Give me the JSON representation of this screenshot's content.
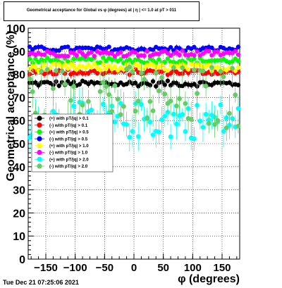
{
  "title": "Geometrical acceptance for Global vs φ (degrees) at | η | <= 1.0 at pT > 011",
  "timestamp": "Tue Dec 21 07:25:06 2021",
  "chart_data": {
    "type": "scatter",
    "title": "Geometrical acceptance for Global vs φ (degrees) at | η | <= 1.0 at pT > 011",
    "xlabel": "φ (degrees)",
    "ylabel": "Geometrical acceptance (%)",
    "xlim": [
      -180,
      180
    ],
    "ylim": [
      0,
      100
    ],
    "x_ticks": [
      -150,
      -100,
      -50,
      0,
      50,
      100,
      150
    ],
    "x_tick_labels": [
      "−150",
      "−100",
      "−50",
      "0",
      "50",
      "100",
      "150"
    ],
    "y_ticks": [
      0,
      10,
      20,
      30,
      40,
      50,
      60,
      70,
      80,
      90,
      100
    ],
    "y_tick_labels": [
      "0",
      "10",
      "20",
      "30",
      "40",
      "50",
      "60",
      "70",
      "80",
      "90",
      "100"
    ],
    "grid": true,
    "legend_position": "left",
    "series": [
      {
        "name": "(+) with pT/|q| > 0.1",
        "color": "#000000",
        "mean": 76,
        "spread": 1.2,
        "err": 1.5
      },
      {
        "name": "(-) with pT/|q| > 0.1",
        "color": "#ff0000",
        "mean": 81,
        "spread": 1.2,
        "err": 1.5
      },
      {
        "name": "(+) with pT/|q| > 0.5",
        "color": "#00ff00",
        "mean": 86,
        "spread": 1.2,
        "err": 1.5
      },
      {
        "name": "(-) with pT/|q| > 0.5",
        "color": "#0000ff",
        "mean": 91,
        "spread": 1.0,
        "err": 1.2
      },
      {
        "name": "(+) with pT/|q| > 1.0",
        "color": "#ffff00",
        "mean": 83,
        "spread": 1.5,
        "err": 2
      },
      {
        "name": "(-) with pT/|q| > 1.0",
        "color": "#ff00ff",
        "mean": 89,
        "spread": 1.2,
        "err": 1.5
      },
      {
        "name": "(+) with pT/|q| > 2.0",
        "color": "#00ffff",
        "mean": 60,
        "spread": 8,
        "err": 6
      },
      {
        "name": "(-) with pT/|q| > 2.0",
        "color": "#66cc66",
        "mean": 70,
        "spread": 14,
        "err": 7
      }
    ]
  }
}
